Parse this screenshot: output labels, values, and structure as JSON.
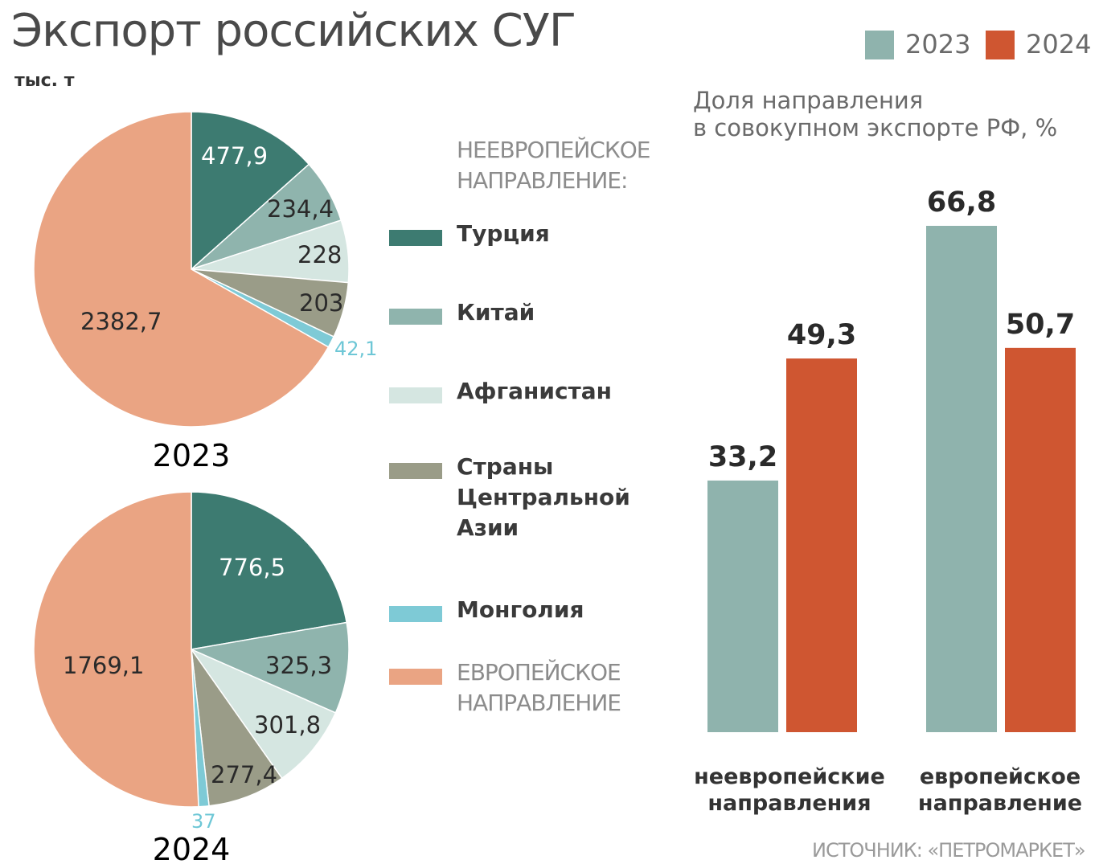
{
  "title": "Экспорт российских СУГ",
  "units": "тыс. т",
  "legend": {
    "heading": [
      "НЕЕВРОПЕЙСКОЕ",
      "НАПРАВЛЕНИЕ:"
    ],
    "items": [
      {
        "label": [
          "Турция"
        ],
        "color": "#3d7b71",
        "style": "bold"
      },
      {
        "label": [
          "Китай"
        ],
        "color": "#8fb4ad",
        "style": "bold"
      },
      {
        "label": [
          "Афганистан"
        ],
        "color": "#d5e6e1",
        "style": "bold"
      },
      {
        "label": [
          "Страны",
          "Центральной",
          "Азии"
        ],
        "color": "#9a9c88",
        "style": "bold"
      },
      {
        "label": [
          "Монголия"
        ],
        "color": "#7ecad6",
        "style": "bold"
      },
      {
        "label": [
          "ЕВРОПЕЙСКОЕ",
          "НАПРАВЛЕНИЕ"
        ],
        "color": "#eaa483",
        "style": "gray"
      }
    ]
  },
  "bar_section": {
    "subtitle": [
      "Доля направления",
      "в совокупном экспорте РФ, %"
    ],
    "legend": [
      {
        "label": "2023",
        "color": "#8fb3ad"
      },
      {
        "label": "2024",
        "color": "#cf5631"
      }
    ],
    "categories": [
      [
        "неевропейские",
        "направления"
      ],
      [
        "европейское",
        "направление"
      ]
    ]
  },
  "source": "ИСТОЧНИК: «ПЕТРОМАРКЕТ»",
  "chart_data": [
    {
      "type": "pie",
      "title": "2023",
      "labels": [
        "Турция",
        "Китай",
        "Афганистан",
        "Страны Центральной Азии",
        "Монголия",
        "ЕВРОПЕЙСКОЕ НАПРАВЛЕНИЕ"
      ],
      "values": [
        477.9,
        234.4,
        228,
        203,
        42.1,
        2382.7
      ],
      "value_labels": [
        "477,9",
        "234,4",
        "228",
        "203",
        "42,1",
        "2382,7"
      ],
      "colors": [
        "#3d7b71",
        "#8fb4ad",
        "#d5e6e1",
        "#9a9c88",
        "#7ecad6",
        "#eaa483"
      ]
    },
    {
      "type": "pie",
      "title": "2024",
      "labels": [
        "Турция",
        "Китай",
        "Афганистан",
        "Страны Центральной Азии",
        "Монголия",
        "ЕВРОПЕЙСКОЕ НАПРАВЛЕНИЕ"
      ],
      "values": [
        776.5,
        325.3,
        301.8,
        277.4,
        37,
        1769.1
      ],
      "value_labels": [
        "776,5",
        "325,3",
        "301,8",
        "277,4",
        "37",
        "1769,1"
      ],
      "colors": [
        "#3d7b71",
        "#8fb4ad",
        "#d5e6e1",
        "#9a9c88",
        "#7ecad6",
        "#eaa483"
      ]
    },
    {
      "type": "bar",
      "categories": [
        "неевропейские направления",
        "европейское направление"
      ],
      "series": [
        {
          "name": "2023",
          "values": [
            33.2,
            66.8
          ],
          "value_labels": [
            "33,2",
            "66,8"
          ],
          "color": "#8fb3ad"
        },
        {
          "name": "2024",
          "values": [
            49.3,
            50.7
          ],
          "value_labels": [
            "49,3",
            "50,7"
          ],
          "color": "#cf5631"
        }
      ],
      "ylabel": "Доля направления в совокупном экспорте РФ, %",
      "ylim": [
        0,
        66.8
      ],
      "grid": false,
      "legend": "top-right"
    }
  ]
}
